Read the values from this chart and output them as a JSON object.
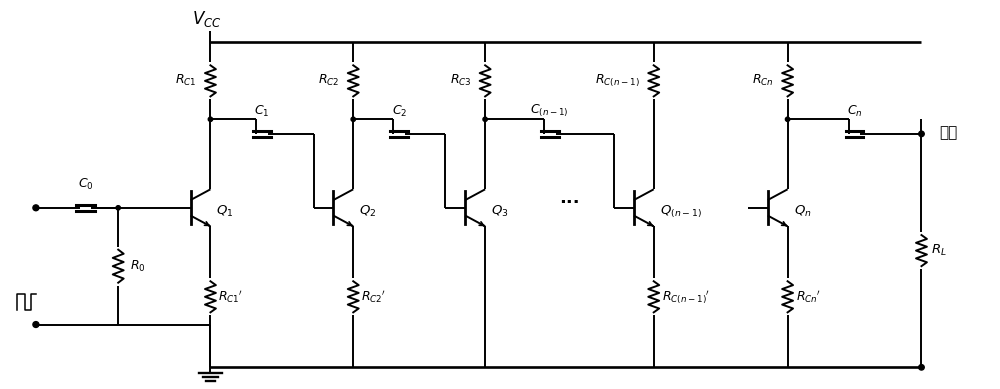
{
  "figsize": [
    10.0,
    3.89
  ],
  "dpi": 100,
  "bg": "#ffffff",
  "lc": "#000000",
  "lw": 1.4,
  "labels": {
    "VCC": "$V_{CC}$",
    "RC1": "$R_{C1}$",
    "RC2": "$R_{C2}$",
    "RC3": "$R_{C3}$",
    "RCn1": "$R_{C(n-1)}$",
    "RCn": "$R_{Cn}$",
    "RC1p": "$R_{C1}{'}$",
    "RC2p": "$R_{C2}{'}$",
    "RCn1p": "$R_{C(n-1)}{'}$",
    "RCnp": "$R_{Cn}{'}$",
    "C0": "$C_0$",
    "C1": "$C_1$",
    "C2": "$C_2$",
    "Cn1": "$C_{(n-1)}$",
    "Cn": "$C_n$",
    "R0": "$R_0$",
    "RL": "$R_L$",
    "Q1": "$Q_1$",
    "Q2": "$Q_2$",
    "Q3": "$Q_3$",
    "Qn1": "$Q_{(n-1)}$",
    "Qn": "$Q_n$",
    "out": "输出",
    "dots": "···"
  }
}
